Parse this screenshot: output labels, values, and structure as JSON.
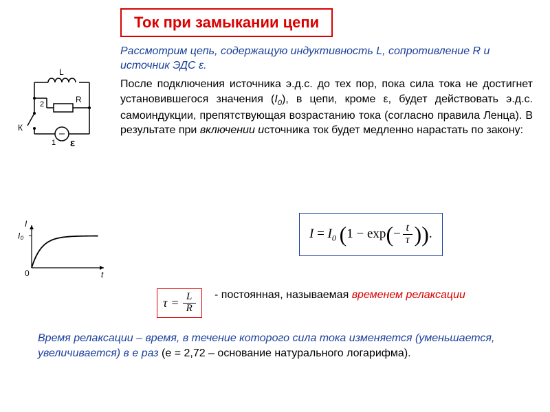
{
  "colors": {
    "red": "#d90000",
    "blue": "#1a3f9c",
    "text": "#000000",
    "box_border": "#d90000",
    "eq_border": "#1a3f9c",
    "tau_border": "#d90000",
    "bg": "#ffffff"
  },
  "title": "Ток при замыкании цепи",
  "intro": "Рассмотрим цепь, содержащую индуктивность L, сопротивление R и источник ЭДС ε.",
  "body_parts": {
    "p1": "После подключения источника э.д.с. до тех пор, пока сила тока не достигнет установившегося значения (",
    "i0_I": "I",
    "i0_sub": "0",
    "p2": "), в цепи, кроме ε, будет действовать э.д.с. самоиндукции, препятствующая возрастанию тока (согласно правила Ленца). В результате при ",
    "incl": "включении и",
    "p3": "сточника ток будет медленно нарастать по закону:"
  },
  "circuit": {
    "labels": {
      "L": "L",
      "R": "R",
      "eps": "ε",
      "K": "К",
      "n1": "1",
      "n2": "2"
    },
    "font_size": 12,
    "stroke": "#000000",
    "stroke_width": 1.5
  },
  "graph": {
    "labels": {
      "I": "I",
      "I0": "I₀",
      "t": "t",
      "zero": "0"
    },
    "font_size": 12,
    "stroke": "#000000",
    "curve_width": 1.8,
    "axis_width": 1.2,
    "width": 140,
    "height": 90,
    "tau_approx": 0.15
  },
  "main_equation": {
    "I": "I",
    "eq": " = ",
    "I0_I": "I",
    "I0_sub": "0",
    "open": "(",
    "one_minus": "1 − ",
    "exp": "exp",
    "open2": "(",
    "minus": "−",
    "frac_num": "t",
    "frac_den": "τ",
    "close2": ")",
    "close": ")",
    "dot": "."
  },
  "tau_equation": {
    "tau": "τ",
    "eq": "=",
    "num": "L",
    "den": "R"
  },
  "tau_label": {
    "pre": "- постоянная, называемая ",
    "hl": "временем релаксации"
  },
  "relax": {
    "p1": "Время релаксации – время, в течение которого сила тока изменяется (уменьшается, увеличивается) в е раз",
    "p2": " (е = 2,72 – основание натурального логарифма)."
  }
}
